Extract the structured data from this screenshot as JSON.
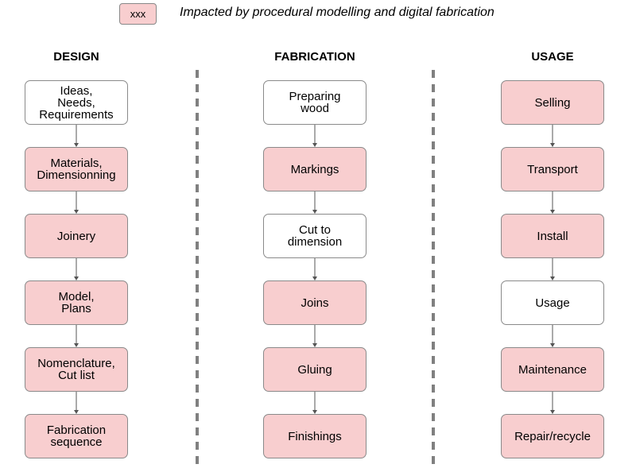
{
  "legend": {
    "sample_text": "xxx",
    "description": "Impacted by procedural modelling and digital fabrication",
    "highlight_color": "#f8cecf"
  },
  "columns": [
    {
      "title": "DESIGN",
      "steps": [
        {
          "label": "Ideas,\nNeeds,\nRequirements",
          "impacted": false
        },
        {
          "label": "Materials,\nDimensionning",
          "impacted": true
        },
        {
          "label": "Joinery",
          "impacted": true
        },
        {
          "label": "Model,\nPlans",
          "impacted": true
        },
        {
          "label": "Nomenclature,\nCut list",
          "impacted": true
        },
        {
          "label": "Fabrication\nsequence",
          "impacted": true
        }
      ]
    },
    {
      "title": "FABRICATION",
      "steps": [
        {
          "label": "Preparing\nwood",
          "impacted": false
        },
        {
          "label": "Markings",
          "impacted": true
        },
        {
          "label": "Cut to\ndimension",
          "impacted": false
        },
        {
          "label": "Joins",
          "impacted": true
        },
        {
          "label": "Gluing",
          "impacted": true
        },
        {
          "label": "Finishings",
          "impacted": true
        }
      ]
    },
    {
      "title": "USAGE",
      "steps": [
        {
          "label": "Selling",
          "impacted": true
        },
        {
          "label": "Transport",
          "impacted": true
        },
        {
          "label": "Install",
          "impacted": true
        },
        {
          "label": "Usage",
          "impacted": false
        },
        {
          "label": "Maintenance",
          "impacted": true
        },
        {
          "label": "Repair/recycle",
          "impacted": true
        }
      ]
    }
  ]
}
